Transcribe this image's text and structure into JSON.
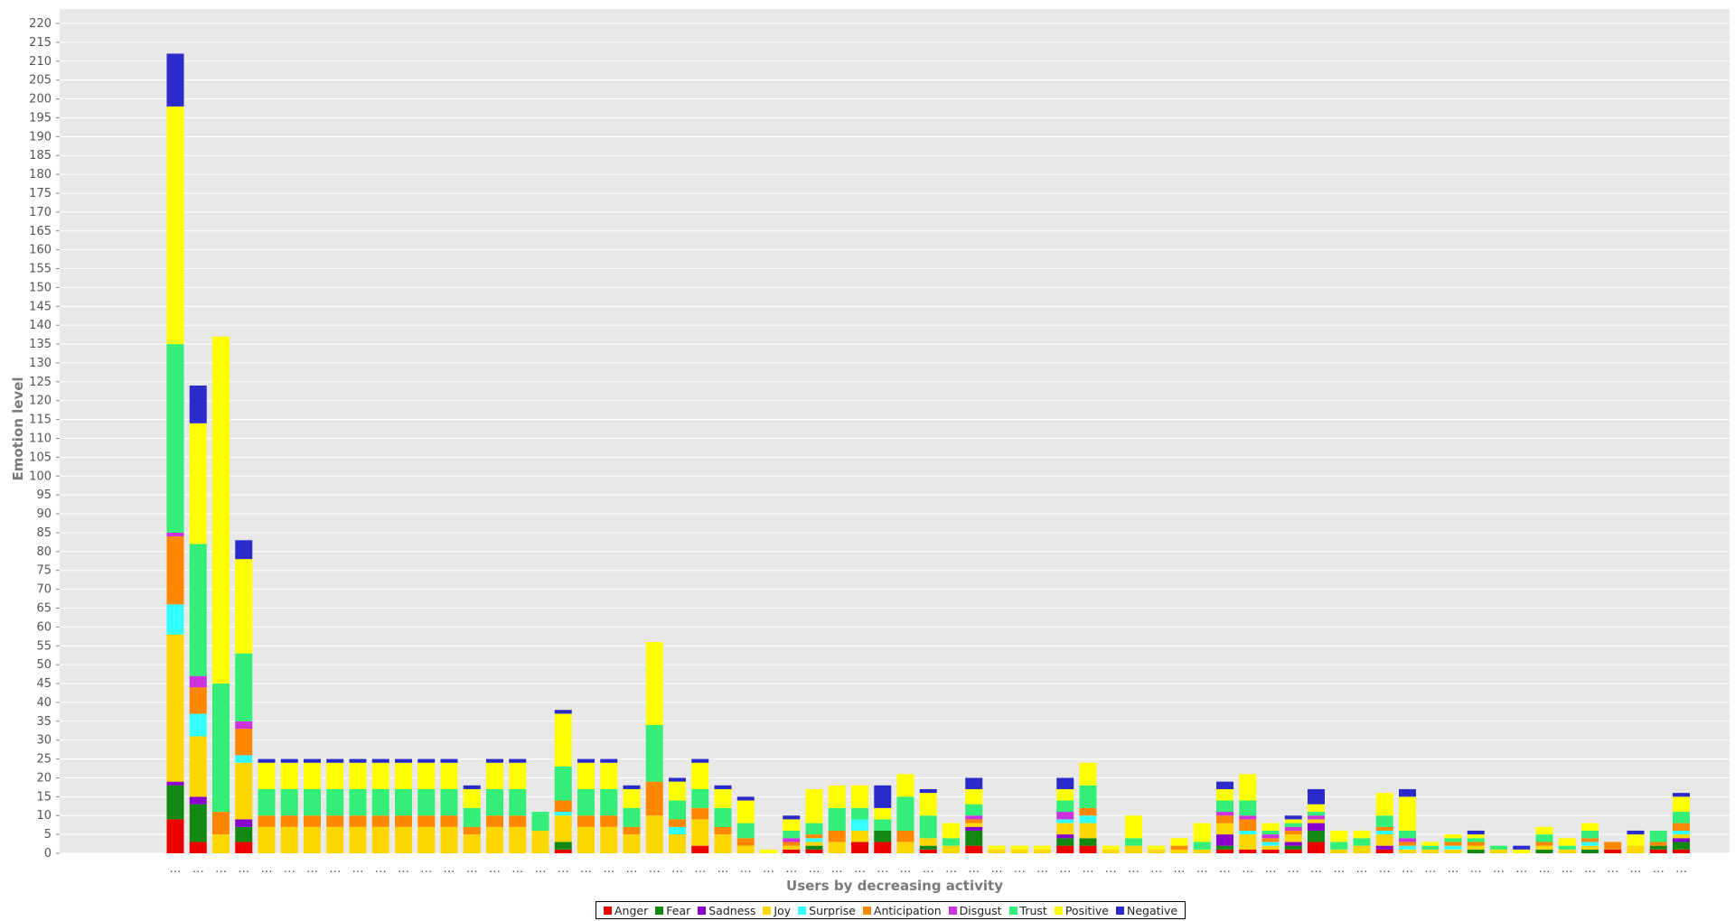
{
  "chart_data": {
    "type": "bar",
    "stacked": true,
    "title": "",
    "xlabel": "Users by decreasing activity",
    "ylabel": "Emotion level",
    "ylim": [
      0,
      220
    ],
    "ytick_step": 5,
    "grid": true,
    "legend_position": "bottom",
    "categories": [
      "…",
      "…",
      "…",
      "…",
      "…",
      "…",
      "…",
      "…",
      "…",
      "…",
      "…",
      "…",
      "…",
      "…",
      "…",
      "…",
      "…",
      "…",
      "…",
      "…",
      "…",
      "…",
      "…",
      "…",
      "…",
      "…",
      "…",
      "…",
      "…",
      "…",
      "…",
      "…",
      "…",
      "…",
      "…",
      "…",
      "…",
      "…",
      "…",
      "…",
      "…",
      "…",
      "…",
      "…",
      "…",
      "…",
      "…",
      "…",
      "…",
      "…",
      "…",
      "…",
      "…",
      "…",
      "…",
      "…",
      "…",
      "…",
      "…",
      "…",
      "…",
      "…",
      "…",
      "…",
      "…",
      "…",
      "…"
    ],
    "series": [
      {
        "name": "Anger",
        "color": "#ee0000",
        "values": [
          9,
          3,
          0,
          3,
          0,
          0,
          0,
          0,
          0,
          0,
          0,
          0,
          0,
          0,
          0,
          0,
          0,
          1,
          0,
          0,
          0,
          0,
          0,
          2,
          0,
          0,
          0,
          1,
          1,
          0,
          3,
          3,
          0,
          1,
          0,
          2,
          0,
          0,
          0,
          2,
          2,
          0,
          0,
          0,
          0,
          0,
          1,
          1,
          1,
          1,
          3,
          0,
          0,
          1,
          0,
          0,
          0,
          0,
          0,
          0,
          0,
          0,
          0,
          1,
          0,
          1,
          1
        ]
      },
      {
        "name": "Fear",
        "color": "#118811",
        "values": [
          9,
          10,
          0,
          4,
          0,
          0,
          0,
          0,
          0,
          0,
          0,
          0,
          0,
          0,
          0,
          0,
          0,
          2,
          0,
          0,
          0,
          0,
          0,
          0,
          0,
          0,
          0,
          0,
          1,
          0,
          0,
          3,
          0,
          1,
          0,
          4,
          0,
          0,
          0,
          2,
          2,
          0,
          0,
          0,
          0,
          0,
          1,
          0,
          0,
          1,
          3,
          0,
          0,
          0,
          0,
          0,
          0,
          1,
          0,
          0,
          1,
          0,
          1,
          0,
          0,
          1,
          2
        ]
      },
      {
        "name": "Sadness",
        "color": "#8800cc",
        "values": [
          1,
          2,
          0,
          2,
          0,
          0,
          0,
          0,
          0,
          0,
          0,
          0,
          0,
          0,
          0,
          0,
          0,
          0,
          0,
          0,
          0,
          0,
          0,
          0,
          0,
          0,
          0,
          0,
          0,
          0,
          0,
          0,
          0,
          0,
          0,
          1,
          0,
          0,
          0,
          1,
          0,
          0,
          0,
          0,
          0,
          0,
          3,
          0,
          0,
          1,
          2,
          0,
          0,
          1,
          0,
          0,
          0,
          0,
          0,
          0,
          0,
          0,
          0,
          0,
          0,
          0,
          1
        ]
      },
      {
        "name": "Joy",
        "color": "#ffd700",
        "values": [
          39,
          16,
          5,
          15,
          7,
          7,
          7,
          7,
          7,
          7,
          7,
          7,
          7,
          5,
          7,
          7,
          6,
          7,
          7,
          7,
          5,
          10,
          5,
          7,
          5,
          2,
          0,
          1,
          1,
          3,
          3,
          0,
          3,
          2,
          2,
          1,
          1,
          1,
          1,
          3,
          4,
          1,
          2,
          1,
          1,
          1,
          3,
          4,
          1,
          2,
          1,
          1,
          2,
          3,
          1,
          1,
          1,
          1,
          1,
          0,
          1,
          1,
          1,
          0,
          2,
          0,
          1
        ]
      },
      {
        "name": "Surprise",
        "color": "#33ffff",
        "values": [
          8,
          6,
          0,
          2,
          0,
          0,
          0,
          0,
          0,
          0,
          0,
          0,
          0,
          0,
          0,
          0,
          0,
          1,
          0,
          0,
          0,
          0,
          2,
          0,
          0,
          0,
          0,
          0,
          1,
          0,
          3,
          0,
          0,
          0,
          0,
          0,
          0,
          0,
          0,
          1,
          2,
          0,
          0,
          0,
          0,
          0,
          0,
          1,
          1,
          0,
          0,
          0,
          0,
          1,
          1,
          0,
          1,
          0,
          0,
          0,
          0,
          0,
          1,
          0,
          0,
          0,
          1
        ]
      },
      {
        "name": "Anticipation",
        "color": "#ff8800",
        "values": [
          18,
          7,
          6,
          7,
          3,
          3,
          3,
          3,
          3,
          3,
          3,
          3,
          3,
          2,
          3,
          3,
          0,
          3,
          3,
          3,
          2,
          9,
          2,
          3,
          2,
          2,
          0,
          1,
          1,
          3,
          0,
          0,
          3,
          0,
          0,
          1,
          0,
          0,
          0,
          0,
          2,
          0,
          0,
          0,
          1,
          0,
          2,
          3,
          1,
          1,
          0,
          0,
          0,
          1,
          1,
          0,
          1,
          1,
          0,
          0,
          1,
          0,
          1,
          2,
          0,
          1,
          2
        ]
      },
      {
        "name": "Disgust",
        "color": "#cc33dd",
        "values": [
          1,
          3,
          0,
          2,
          0,
          0,
          0,
          0,
          0,
          0,
          0,
          0,
          0,
          0,
          0,
          0,
          0,
          0,
          0,
          0,
          0,
          0,
          0,
          0,
          0,
          0,
          0,
          1,
          0,
          0,
          0,
          0,
          0,
          0,
          0,
          1,
          0,
          0,
          0,
          2,
          0,
          0,
          0,
          0,
          0,
          0,
          1,
          1,
          1,
          1,
          1,
          0,
          0,
          0,
          1,
          0,
          0,
          0,
          0,
          0,
          0,
          0,
          0,
          0,
          0,
          0,
          0
        ]
      },
      {
        "name": "Trust",
        "color": "#33ee77",
        "values": [
          50,
          35,
          34,
          18,
          7,
          7,
          7,
          7,
          7,
          7,
          7,
          7,
          7,
          5,
          7,
          7,
          5,
          9,
          7,
          7,
          5,
          15,
          5,
          5,
          5,
          4,
          0,
          2,
          3,
          6,
          3,
          3,
          9,
          6,
          2,
          3,
          0,
          0,
          0,
          3,
          6,
          0,
          2,
          0,
          0,
          2,
          3,
          4,
          1,
          1,
          1,
          2,
          2,
          3,
          2,
          1,
          1,
          1,
          1,
          0,
          2,
          1,
          2,
          0,
          0,
          3,
          3
        ]
      },
      {
        "name": "Positive",
        "color": "#ffff00",
        "values": [
          63,
          32,
          92,
          25,
          7,
          7,
          7,
          7,
          7,
          7,
          7,
          7,
          7,
          5,
          7,
          7,
          0,
          14,
          7,
          7,
          5,
          22,
          5,
          7,
          5,
          6,
          1,
          3,
          9,
          6,
          6,
          3,
          6,
          6,
          4,
          4,
          1,
          1,
          1,
          3,
          6,
          1,
          6,
          1,
          2,
          5,
          3,
          7,
          2,
          1,
          2,
          3,
          2,
          6,
          9,
          1,
          1,
          1,
          0,
          1,
          2,
          2,
          2,
          0,
          3,
          0,
          4
        ]
      },
      {
        "name": "Negative",
        "color": "#2b2bcc",
        "values": [
          14,
          10,
          0,
          5,
          1,
          1,
          1,
          1,
          1,
          1,
          1,
          1,
          1,
          1,
          1,
          1,
          0,
          1,
          1,
          1,
          1,
          0,
          1,
          1,
          1,
          1,
          0,
          1,
          0,
          0,
          0,
          6,
          0,
          1,
          0,
          3,
          0,
          0,
          0,
          3,
          0,
          0,
          0,
          0,
          0,
          0,
          2,
          0,
          0,
          1,
          4,
          0,
          0,
          0,
          2,
          0,
          0,
          1,
          0,
          1,
          0,
          0,
          0,
          0,
          1,
          0,
          1
        ]
      }
    ]
  }
}
